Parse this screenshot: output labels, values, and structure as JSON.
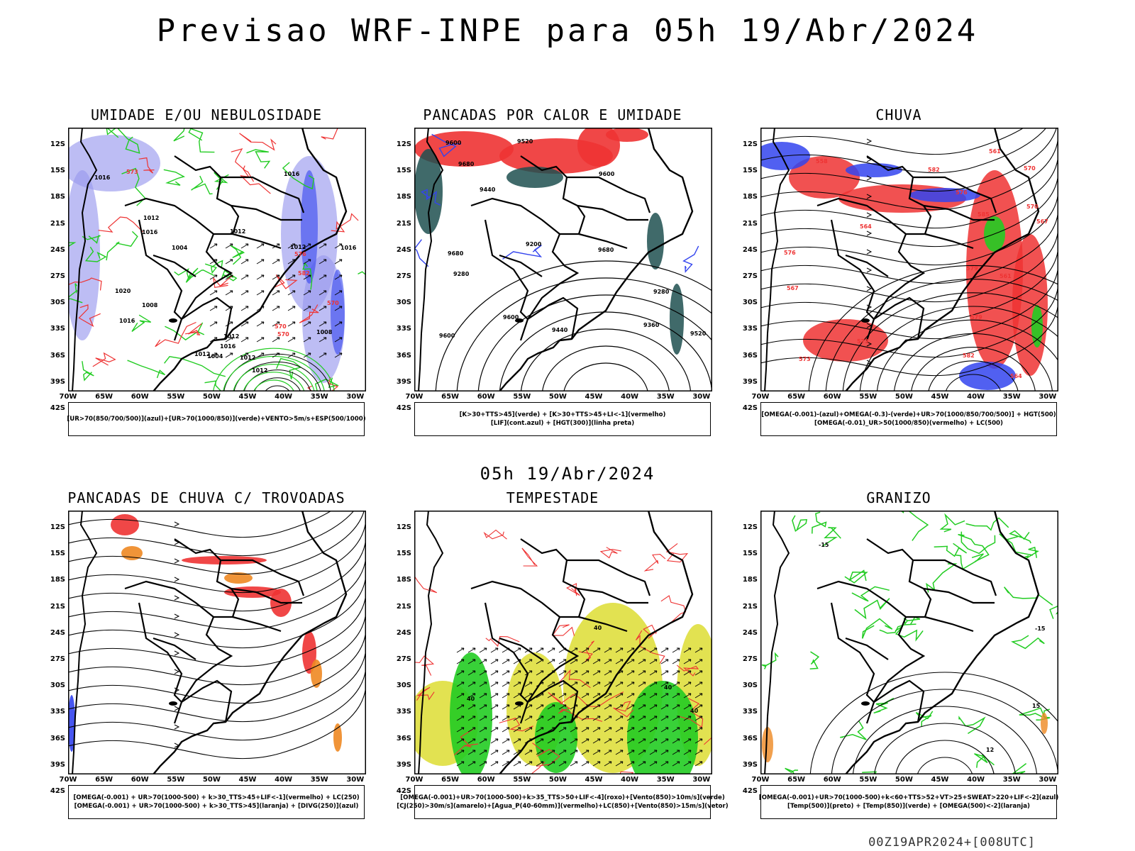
{
  "title": "Previsao WRF-INPE  para 05h 19/Abr/2024",
  "mid_date": "05h 19/Abr/2024",
  "footer": "00Z19APR2024+[008UTC]",
  "lat_labels": [
    "12S",
    "15S",
    "18S",
    "21S",
    "24S",
    "27S",
    "30S",
    "33S",
    "36S",
    "39S",
    "42S"
  ],
  "lon_labels": [
    "70W",
    "65W",
    "60W",
    "55W",
    "50W",
    "45W",
    "40W",
    "35W",
    "30W"
  ],
  "colors": {
    "blue": "#3344ee",
    "lavender": "#9999ee",
    "green": "#22cc22",
    "red": "#ee3333",
    "orange": "#ee8822",
    "yellow": "#dddd33",
    "dark_teal": "#1f5050",
    "contour": "#000000"
  },
  "panels": [
    {
      "title": "UMIDADE E/OU NEBULOSIDADE",
      "legend": [
        "[UR>70(850/700/500)](azul)+[UR>70(1000/850)](verde)+VENTO>5m/s+ESP(500/1000)"
      ],
      "labels": [
        "1012",
        "1012",
        "1012",
        "1016",
        "1016",
        "1016",
        "1016",
        "1020",
        "1012",
        "1012",
        "1008",
        "1008",
        "1004",
        "1012",
        "1016",
        "1012",
        "570",
        "570",
        "570",
        "576",
        "573",
        "582",
        "1016",
        "1004"
      ]
    },
    {
      "title": "PANCADAS POR CALOR E UMIDADE",
      "legend": [
        "[K>30+TTS>45](verde) + [K>30+TTS>45+LI<-1](vermelho)",
        "[LIF](cont.azul) + [HGT(300)](linha preta)"
      ],
      "labels": [
        "9680",
        "9680",
        "9680",
        "9600",
        "9600",
        "9600",
        "9600",
        "9520",
        "9520",
        "9440",
        "9440",
        "9360",
        "9280",
        "9200",
        "9280"
      ]
    },
    {
      "title": "CHUVA",
      "legend": [
        "[OMEGA(-0.001)-(azul)+OMEGA(-0.3)-(verde)+UR>70(1000/850/700/500)] + HGT(500)",
        "[OMEGA(-0.01)_UR>50(1000/850)(vermelho) + LC(500)"
      ],
      "labels": [
        "585",
        "582",
        "579",
        "576",
        "573",
        "570",
        "567",
        "564",
        "561",
        "558",
        "582",
        "579",
        "576",
        "573",
        "570",
        "567",
        "564",
        "561"
      ]
    },
    {
      "title": "PANCADAS DE CHUVA C/ TROVOADAS",
      "legend": [
        "[OMEGA(-0.001) + UR>70(1000-500) + k>30_TTS>45+LIF<-1](vermelho) + LC(250)",
        "[OMEGA(-0.001) + UR>70(1000-500) + k>30_TTS>45](laranja) + [DIVG(250)](azul)"
      ],
      "labels": []
    },
    {
      "title": "TEMPESTADE",
      "legend": [
        "[OMEGA(-0.001)+UR>70(1000-500)+k>35_TTS>50+LIF<-4](roxo)+[Vento(850)>10m/s](verde)",
        "[CJ(250)>30m/s](amarelo)+[Agua_P(40-60mm)](vermelho)+LC(850)+[Vento(850)>15m/s](vetor)"
      ],
      "labels": [
        "40",
        "40",
        "40",
        "40"
      ]
    },
    {
      "title": "GRANIZO",
      "legend": [
        "[OMEGA(-0.001)+UR>70(1000-500)+k<60+TTS>52+VT>25+SWEAT>220+LIF<-2](azul)",
        "[Temp(500)](preto) + [Temp(850)](verde) + [OMEGA(500)<-2](laranja)"
      ],
      "labels": [
        "12",
        "-15",
        "15",
        "-15"
      ]
    }
  ]
}
